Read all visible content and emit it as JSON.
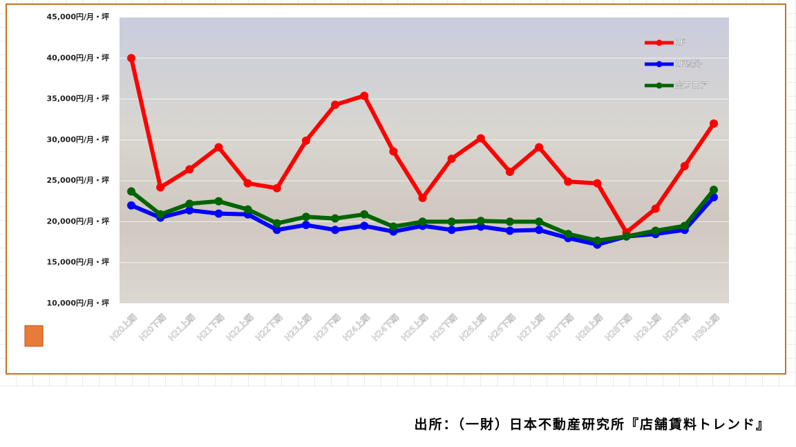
{
  "chart_data": {
    "type": "line",
    "source": "出所：（一財）日本不動産研究所『店舗賃料トレンド』",
    "categories": [
      "H20上期",
      "H20下期",
      "H21上期",
      "H21下期",
      "H22上期",
      "H22下期",
      "H23上期",
      "H23下期",
      "H24上期",
      "H24下期",
      "H25上期",
      "H25下期",
      "H26上期",
      "H26下期",
      "H27上期",
      "H27下期",
      "H28上期",
      "H28下期",
      "H29上期",
      "H29下期",
      "H30上期"
    ],
    "series": [
      {
        "name": "1F",
        "color": "#ff0000",
        "values": [
          40000,
          24200,
          26400,
          29100,
          24700,
          24100,
          29900,
          34300,
          35400,
          28600,
          22900,
          27700,
          30200,
          26100,
          29100,
          24900,
          24700,
          18700,
          21600,
          26800,
          32000
        ]
      },
      {
        "name": "1F以外",
        "color": "#0000ff",
        "values": [
          22000,
          20500,
          21400,
          21000,
          20900,
          19000,
          19600,
          19000,
          19500,
          18800,
          19500,
          19000,
          19400,
          18900,
          19000,
          18000,
          17200,
          18200,
          18500,
          19000,
          23000
        ]
      },
      {
        "name": "全フロア",
        "color": "#006400",
        "values": [
          23700,
          20900,
          22200,
          22500,
          21500,
          19800,
          20600,
          20400,
          20900,
          19400,
          20000,
          20000,
          20100,
          20000,
          20000,
          18500,
          17700,
          18200,
          18900,
          19500,
          23900
        ]
      }
    ],
    "ylim": [
      10000,
      45000
    ],
    "yticks": [
      {
        "value": 10000,
        "label": "10,000円/月・坪"
      },
      {
        "value": 15000,
        "label": "15,000円/月・坪"
      },
      {
        "value": 20000,
        "label": "20,000円/月・坪"
      },
      {
        "value": 25000,
        "label": "25,000円/月・坪"
      },
      {
        "value": 30000,
        "label": "30,000円/月・坪"
      },
      {
        "value": 35000,
        "label": "35,000円/月・坪"
      },
      {
        "value": 40000,
        "label": "40,000円/月・坪"
      },
      {
        "value": 45000,
        "label": "45,000円/月・坪"
      }
    ],
    "grid": true,
    "legend": "top-right"
  }
}
